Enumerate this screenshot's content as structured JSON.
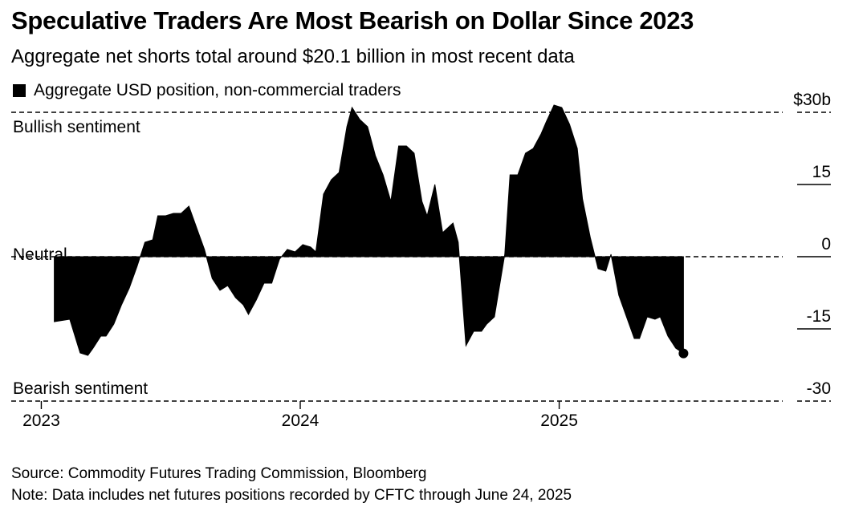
{
  "title": "Speculative Traders Are Most Bearish on Dollar Since 2023",
  "subtitle": "Aggregate net shorts total around $20.1 billion in most recent data",
  "legend_label": "Aggregate USD position, non-commercial traders",
  "colors": {
    "area": "#000000",
    "background": "#ffffff",
    "gridline": "#000000"
  },
  "annotations": {
    "bullish": "Bullish sentiment",
    "neutral": "Neutral",
    "bearish": "Bearish sentiment"
  },
  "footer": {
    "source": "Source: Commodity Futures Trading Commission, Bloomberg",
    "note": "Note: Data includes net futures positions recorded by CFTC through June 24, 2025"
  },
  "chart_data": {
    "type": "area",
    "ylabel": "",
    "xlabel": "",
    "ylim": [
      -30,
      30
    ],
    "yticks": [
      30,
      15,
      0,
      -15,
      -30
    ],
    "ytick_labels": [
      "$30b",
      "15",
      "0",
      "-15",
      "-30"
    ],
    "xticks": [
      2023.0,
      2024.0,
      2025.0
    ],
    "xtick_labels": [
      "2023",
      "2024",
      "2025"
    ],
    "xlim": [
      2022.98,
      2025.95
    ],
    "dashed_reference_lines": [
      30,
      0,
      -30
    ],
    "end_marker": true,
    "series": [
      {
        "x": [
          2023.05,
          2023.11,
          2023.15,
          2023.18,
          2023.2,
          2023.23,
          2023.25,
          2023.28,
          2023.31,
          2023.34,
          2023.37,
          2023.4,
          2023.43,
          2023.45,
          2023.48,
          2023.51,
          2023.54,
          2023.57,
          2023.61,
          2023.63,
          2023.66,
          2023.69,
          2023.72,
          2023.75,
          2023.78,
          2023.8,
          2023.83,
          2023.86,
          2023.89,
          2023.92,
          2023.95,
          2023.98,
          2024.01,
          2024.04,
          2024.06,
          2024.09,
          2024.12,
          2024.15,
          2024.18,
          2024.2,
          2024.23,
          2024.26,
          2024.29,
          2024.32,
          2024.35,
          2024.38,
          2024.41,
          2024.44,
          2024.47,
          2024.49,
          2024.52,
          2024.55,
          2024.59,
          2024.61,
          2024.64,
          2024.67,
          2024.7,
          2024.72,
          2024.75,
          2024.79,
          2024.81,
          2024.84,
          2024.87,
          2024.9,
          2024.93,
          2024.95,
          2024.98,
          2025.01,
          2025.04,
          2025.07,
          2025.09,
          2025.12,
          2025.15,
          2025.18,
          2025.2,
          2025.23,
          2025.26,
          2025.29,
          2025.31,
          2025.34,
          2025.37,
          2025.39,
          2025.42,
          2025.45,
          2025.48
        ],
        "values": [
          -13.5,
          -13,
          -20,
          -20.5,
          -19,
          -16.5,
          -16.5,
          -14,
          -10,
          -6.5,
          -2,
          3,
          3.5,
          8.5,
          8.5,
          9,
          9,
          10.5,
          4.5,
          1.5,
          -4.5,
          -7,
          -6,
          -8.5,
          -10,
          -12,
          -9,
          -5.5,
          -5.5,
          -0.5,
          1.5,
          1,
          2.5,
          2,
          1,
          13,
          16,
          17.5,
          27,
          31,
          28.5,
          27,
          21,
          17,
          11.5,
          23,
          23,
          21.5,
          11.5,
          8.5,
          15,
          5,
          7,
          3,
          -18.5,
          -15.5,
          -15.5,
          -14,
          -12.5,
          0.5,
          17,
          17,
          21.5,
          22.5,
          25.5,
          28,
          31.5,
          31,
          27.5,
          22.5,
          12,
          4,
          -2.5,
          -3,
          0.5,
          -8,
          -12.5,
          -17,
          -17,
          -12.5,
          -13,
          -12.5,
          -16.5,
          -19,
          -20.1
        ]
      }
    ]
  }
}
